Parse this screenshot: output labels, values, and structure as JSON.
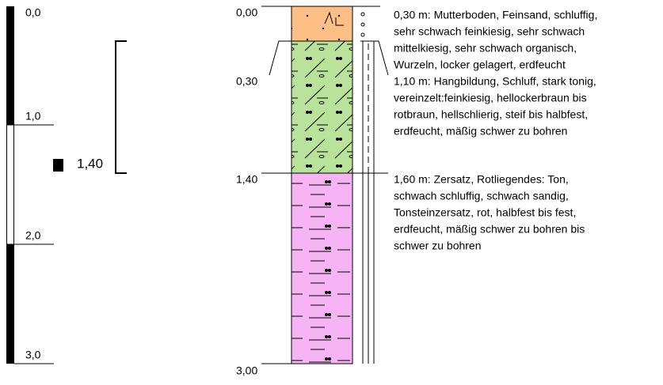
{
  "scale": {
    "labels": [
      "0,0",
      "1,0",
      "2,0",
      "3,0"
    ]
  },
  "water_level": {
    "label": "1,40"
  },
  "depths": [
    "0,00",
    "0,30",
    "1,40",
    "3,00"
  ],
  "layers": [
    {
      "lines": [
        "0,30 m: Mutterboden, Feinsand, schluffig,",
        "sehr schwach feinkiesig, sehr schwach",
        "mittelkiesig, sehr schwach organisch,",
        "Wurzeln, locker gelagert, erdfeucht"
      ]
    },
    {
      "lines": [
        "1,10 m: Hangbildung, Schluff, stark tonig,",
        "vereinzelt:feinkiesig, hellockerbraun bis",
        "rotbraun, hellschlierig, steif bis halbfest,",
        "erdfeucht, mäßig schwer zu bohren"
      ]
    },
    {
      "lines": [
        "1,60 m: Zersatz, Rotliegendes: Ton,",
        "schwach schluffig, schwach sandig,",
        "Tonsteinzersatz, rot, halbfest bis fest,",
        "erdfeucht, mäßig schwer zu bohren bis",
        "schwer zu bohren"
      ]
    }
  ]
}
